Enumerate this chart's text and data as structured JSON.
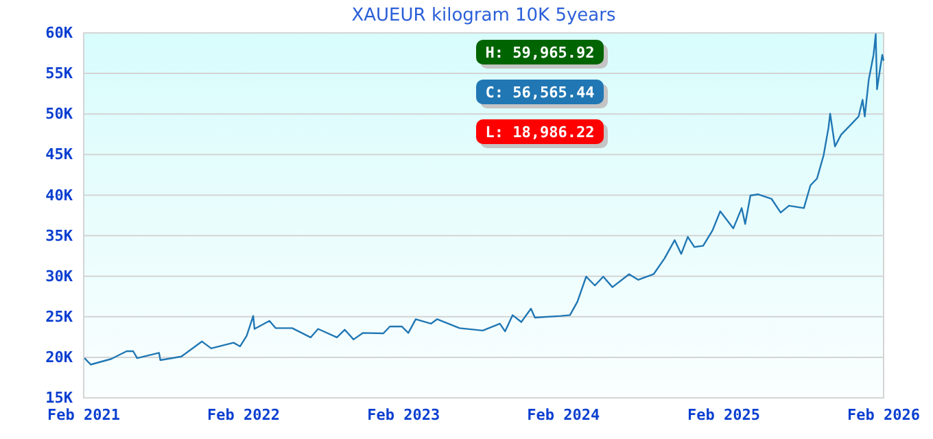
{
  "chart_data": {
    "type": "line",
    "title": "XAUEUR kilogram 10K 5years",
    "x": [
      "2021-02-03",
      "2021-02-17",
      "2021-04-05",
      "2021-05-10",
      "2021-05-25",
      "2021-06-03",
      "2021-07-23",
      "2021-07-26",
      "2021-09-12",
      "2021-10-29",
      "2021-11-19",
      "2022-01-09",
      "2022-01-24",
      "2022-02-08",
      "2022-02-23",
      "2022-02-26",
      "2022-04-01",
      "2022-04-15",
      "2022-05-23",
      "2022-07-04",
      "2022-07-21",
      "2022-09-02",
      "2022-09-20",
      "2022-10-10",
      "2022-10-31",
      "2022-12-17",
      "2023-01-01",
      "2023-01-28",
      "2023-02-12",
      "2023-03-01",
      "2023-04-05",
      "2023-04-19",
      "2023-06-09",
      "2023-08-01",
      "2023-09-09",
      "2023-09-21",
      "2023-10-08",
      "2023-10-28",
      "2023-11-19",
      "2023-11-28",
      "2024-01-26",
      "2024-02-16",
      "2024-03-04",
      "2024-03-24",
      "2024-04-13",
      "2024-05-02",
      "2024-05-23",
      "2024-06-30",
      "2024-07-21",
      "2024-08-25",
      "2024-09-19",
      "2024-10-12",
      "2024-10-27",
      "2024-11-11",
      "2024-11-26",
      "2024-12-16",
      "2025-01-06",
      "2025-01-24",
      "2025-02-23",
      "2025-03-14",
      "2025-03-22",
      "2025-04-03",
      "2025-04-21",
      "2025-05-21",
      "2025-06-11",
      "2025-06-30",
      "2025-08-03",
      "2025-08-18",
      "2025-09-02",
      "2025-09-17",
      "2025-09-28",
      "2025-10-02",
      "2025-10-13",
      "2025-10-27",
      "2025-11-21",
      "2025-12-06",
      "2025-12-15",
      "2025-12-20",
      "2025-12-29",
      "2026-01-09",
      "2026-01-14",
      "2026-01-17",
      "2026-01-24",
      "2026-01-29",
      "2026-02-01"
    ],
    "series": [
      {
        "color": "#2077b4",
        "values": [
          19900,
          19100,
          19800,
          20750,
          20750,
          19900,
          20550,
          19650,
          20100,
          21950,
          21100,
          21800,
          21350,
          22650,
          25100,
          23500,
          24500,
          23600,
          23600,
          22450,
          23500,
          22450,
          23400,
          22200,
          23000,
          22950,
          23800,
          23800,
          23000,
          24700,
          24150,
          24700,
          23600,
          23300,
          24150,
          23200,
          25200,
          24350,
          26000,
          24900,
          25100,
          25200,
          26850,
          29950,
          28850,
          29950,
          28650,
          30250,
          29550,
          30250,
          32200,
          34450,
          32750,
          34850,
          33600,
          33750,
          35600,
          38000,
          35900,
          38400,
          36450,
          39950,
          40100,
          39550,
          37850,
          38700,
          38400,
          41200,
          42050,
          44900,
          48250,
          50050,
          46000,
          47450,
          48850,
          49700,
          51750,
          49700,
          54200,
          57300,
          59850,
          53050,
          55600,
          57300,
          56565
        ]
      }
    ],
    "xlim": [
      "2021-02-01",
      "2026-02-01"
    ],
    "xticks": [
      {
        "value": "2021-02-01",
        "label": "Feb 2021"
      },
      {
        "value": "2022-02-01",
        "label": "Feb 2022"
      },
      {
        "value": "2023-02-01",
        "label": "Feb 2023"
      },
      {
        "value": "2024-02-01",
        "label": "Feb 2024"
      },
      {
        "value": "2025-02-01",
        "label": "Feb 2025"
      },
      {
        "value": "2026-02-01",
        "label": "Feb 2026"
      }
    ],
    "ylim": [
      15000,
      60000
    ],
    "yticks": [
      {
        "value": 15000,
        "label": "15K"
      },
      {
        "value": 20000,
        "label": "20K"
      },
      {
        "value": 25000,
        "label": "25K"
      },
      {
        "value": 30000,
        "label": "30K"
      },
      {
        "value": 35000,
        "label": "35K"
      },
      {
        "value": 40000,
        "label": "40K"
      },
      {
        "value": 45000,
        "label": "45K"
      },
      {
        "value": 50000,
        "label": "50K"
      },
      {
        "value": 55000,
        "label": "55K"
      },
      {
        "value": 60000,
        "label": "60K"
      }
    ],
    "grid": "y",
    "marker": "none",
    "line_style": "solid",
    "annotations": [
      "H: 59,965.92",
      "C: 56,565.44",
      "L: 18,986.22"
    ]
  }
}
